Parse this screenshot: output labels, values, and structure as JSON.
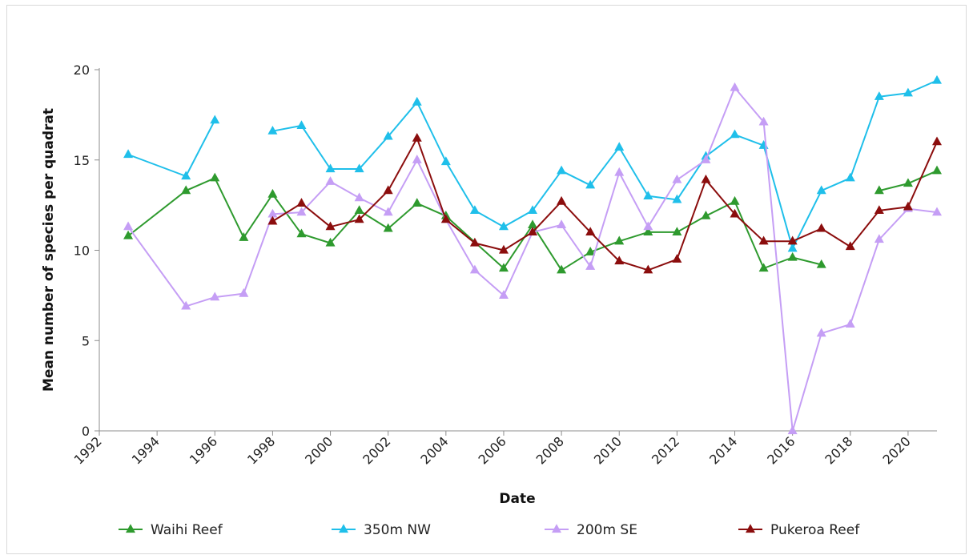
{
  "chart_data": {
    "type": "line",
    "title": "",
    "xlabel": "Date",
    "ylabel": "Mean number of species per quadrat",
    "xlim": [
      1992,
      2021
    ],
    "ylim": [
      0,
      20
    ],
    "x_ticks": [
      "1992",
      "1994",
      "1996",
      "1998",
      "2000",
      "2002",
      "2004",
      "2006",
      "2008",
      "2010",
      "2012",
      "2014",
      "2016",
      "2018",
      "2020"
    ],
    "y_ticks": [
      "0",
      "5",
      "10",
      "15",
      "20"
    ],
    "grid": false,
    "legend_position": "bottom",
    "marker": "triangle",
    "series": [
      {
        "name": "Waihi Reef",
        "color": "#2e9a2e",
        "points": [
          [
            1993,
            10.8
          ],
          [
            1995,
            13.3
          ],
          [
            1996,
            14.0
          ],
          [
            1997,
            10.7
          ],
          [
            1998,
            13.1
          ],
          [
            1999,
            10.9
          ],
          [
            2000,
            10.4
          ],
          [
            2001,
            12.2
          ],
          [
            2002,
            11.2
          ],
          [
            2003,
            12.6
          ],
          [
            2004,
            11.9
          ],
          [
            2006,
            9.0
          ],
          [
            2007,
            11.4
          ],
          [
            2008,
            8.9
          ],
          [
            2009,
            9.9
          ],
          [
            2010,
            10.5
          ],
          [
            2011,
            11.0
          ],
          [
            2012,
            11.0
          ],
          [
            2013,
            11.9
          ],
          [
            2014,
            12.7
          ],
          [
            2015,
            9.0
          ],
          [
            2016,
            9.6
          ],
          [
            2017,
            9.2
          ],
          null,
          [
            2019,
            13.3
          ],
          [
            2020,
            13.7
          ],
          [
            2021,
            14.4
          ]
        ]
      },
      {
        "name": "350m NW",
        "color": "#1fbfea",
        "points": [
          [
            1993,
            15.3
          ],
          [
            1995,
            14.1
          ],
          [
            1996,
            17.2
          ],
          null,
          [
            1998,
            16.6
          ],
          [
            1999,
            16.9
          ],
          [
            2000,
            14.5
          ],
          [
            2001,
            14.5
          ],
          [
            2002,
            16.3
          ],
          [
            2003,
            18.2
          ],
          [
            2004,
            14.9
          ],
          [
            2005,
            12.2
          ],
          [
            2006,
            11.3
          ],
          [
            2007,
            12.2
          ],
          [
            2008,
            14.4
          ],
          [
            2009,
            13.6
          ],
          [
            2010,
            15.7
          ],
          [
            2011,
            13.0
          ],
          [
            2012,
            12.8
          ],
          [
            2013,
            15.2
          ],
          [
            2014,
            16.4
          ],
          [
            2015,
            15.8
          ],
          [
            2016,
            10.1
          ],
          [
            2017,
            13.3
          ],
          [
            2018,
            14.0
          ],
          [
            2019,
            18.5
          ],
          [
            2020,
            18.7
          ],
          [
            2021,
            19.4
          ]
        ]
      },
      {
        "name": "200m SE",
        "color": "#c59ef5",
        "points": [
          [
            1993,
            11.3
          ],
          [
            1995,
            6.9
          ],
          [
            1996,
            7.4
          ],
          [
            1997,
            7.6
          ],
          [
            1998,
            12.0
          ],
          [
            1999,
            12.1
          ],
          [
            2000,
            13.8
          ],
          [
            2001,
            12.9
          ],
          [
            2002,
            12.1
          ],
          [
            2003,
            15.0
          ],
          [
            2004,
            11.7
          ],
          [
            2005,
            8.9
          ],
          [
            2006,
            7.5
          ],
          [
            2007,
            11.0
          ],
          [
            2008,
            11.4
          ],
          [
            2009,
            9.1
          ],
          [
            2010,
            14.3
          ],
          [
            2011,
            11.3
          ],
          [
            2012,
            13.9
          ],
          [
            2013,
            15.0
          ],
          [
            2014,
            19.0
          ],
          [
            2015,
            17.1
          ],
          [
            2016,
            0.0
          ],
          [
            2017,
            5.4
          ],
          [
            2018,
            5.9
          ],
          [
            2019,
            10.6
          ],
          [
            2020,
            12.3
          ],
          [
            2021,
            12.1
          ]
        ]
      },
      {
        "name": "Pukeroa Reef",
        "color": "#8b0d0d",
        "points": [
          [
            1998,
            11.6
          ],
          [
            1999,
            12.6
          ],
          [
            2000,
            11.3
          ],
          [
            2001,
            11.7
          ],
          [
            2002,
            13.3
          ],
          [
            2003,
            16.2
          ],
          [
            2004,
            11.7
          ],
          [
            2005,
            10.4
          ],
          [
            2006,
            10.0
          ],
          [
            2007,
            11.0
          ],
          [
            2008,
            12.7
          ],
          [
            2009,
            11.0
          ],
          [
            2010,
            9.4
          ],
          [
            2011,
            8.9
          ],
          [
            2012,
            9.5
          ],
          [
            2013,
            13.9
          ],
          [
            2014,
            12.0
          ],
          [
            2015,
            10.5
          ],
          [
            2016,
            10.5
          ],
          [
            2017,
            11.2
          ],
          [
            2018,
            10.2
          ],
          [
            2019,
            12.2
          ],
          [
            2020,
            12.4
          ],
          [
            2021,
            16.0
          ]
        ]
      }
    ]
  }
}
